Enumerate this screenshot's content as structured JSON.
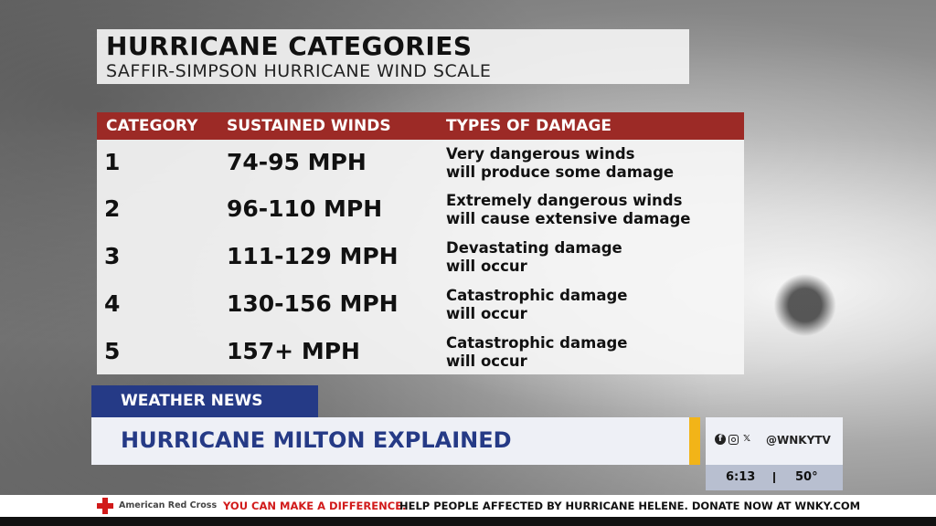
{
  "header": {
    "title": "HURRICANE CATEGORIES",
    "subtitle": "SAFFIR-SIMPSON HURRICANE WIND SCALE"
  },
  "table": {
    "columns": [
      "CATEGORY",
      "SUSTAINED WINDS",
      "TYPES OF DAMAGE"
    ],
    "rows": [
      {
        "category": "1",
        "winds": "74-95 MPH",
        "damage_line1": "Very dangerous winds",
        "damage_line2": "will produce some damage"
      },
      {
        "category": "2",
        "winds": "96-110 MPH",
        "damage_line1": "Extremely dangerous winds",
        "damage_line2": "will cause extensive damage"
      },
      {
        "category": "3",
        "winds": "111-129 MPH",
        "damage_line1": "Devastating damage",
        "damage_line2": "will occur"
      },
      {
        "category": "4",
        "winds": "130-156 MPH",
        "damage_line1": "Catastrophic damage",
        "damage_line2": "will occur"
      },
      {
        "category": "5",
        "winds": "157+ MPH",
        "damage_line1": "Catastrophic damage",
        "damage_line2": "will occur"
      }
    ]
  },
  "lower_third": {
    "tag": "WEATHER NEWS",
    "headline": "HURRICANE MILTON EXPLAINED",
    "social_handle": "@WNKYTV",
    "social_icons": [
      "facebook-icon",
      "instagram-icon",
      "x-icon"
    ],
    "time": "6:13",
    "temperature": "50°"
  },
  "ticker": {
    "sponsor": "American Red Cross",
    "highlight": "YOU CAN MAKE A DIFFERENCE.",
    "message": "HELP PEOPLE AFFECTED BY HURRICANE HELENE. DONATE NOW AT WNKY.COM"
  },
  "colors": {
    "header_red": "#9c2a26",
    "news_blue": "#253a86",
    "accent_gold": "#f2b418",
    "ticker_red": "#d11a1a"
  }
}
